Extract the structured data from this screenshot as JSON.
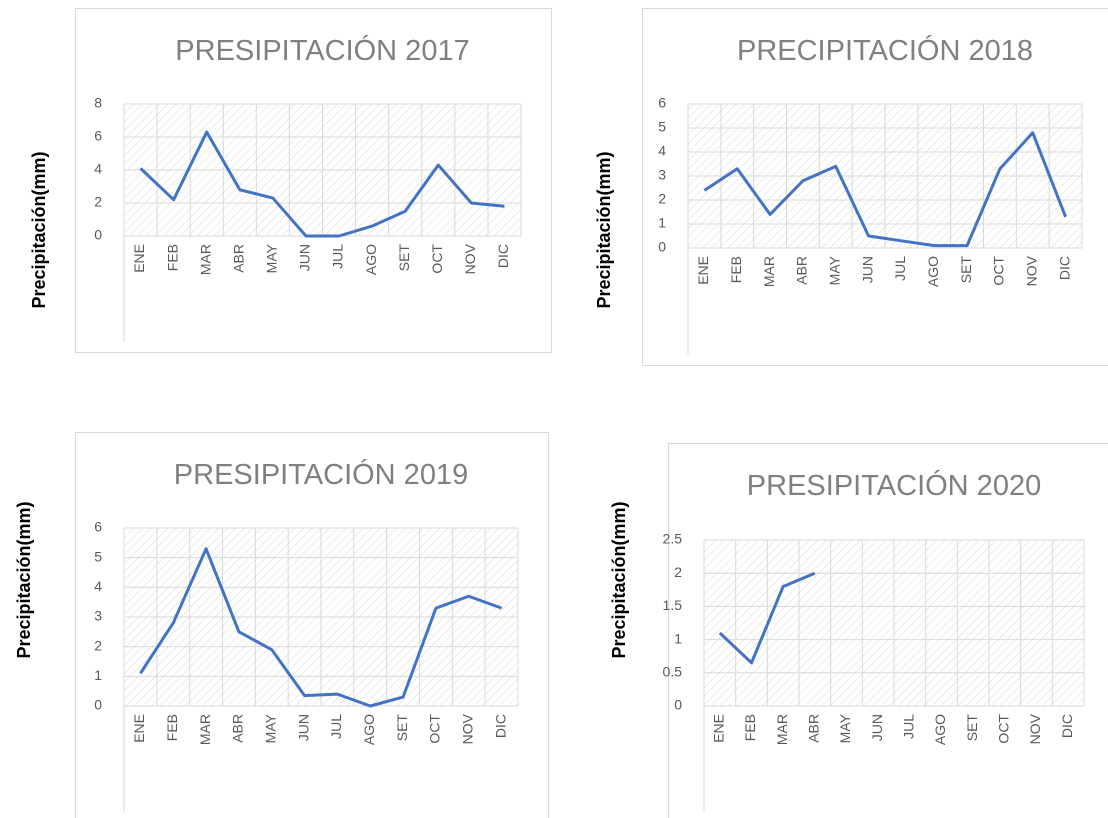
{
  "chart_data": [
    {
      "type": "line",
      "title": "PRESIPITACIÓN 2017",
      "y_label": "Precipitación(mm)",
      "categories": [
        "ENE",
        "FEB",
        "MAR",
        "ABR",
        "MAY",
        "JUN",
        "JUL",
        "AGO",
        "SET",
        "OCT",
        "NOV",
        "DIC"
      ],
      "values": [
        4.1,
        2.2,
        6.3,
        2.8,
        2.3,
        0,
        0,
        0.6,
        1.5,
        4.3,
        2.0,
        1.8
      ],
      "color": "#4472c4",
      "ylim": [
        0,
        8
      ],
      "yticks": [
        0,
        2,
        4,
        6,
        8
      ],
      "grid": true
    },
    {
      "type": "line",
      "title": "PRECIPITACIÓN 2018",
      "y_label": "Precipitación(mm)",
      "categories": [
        "ENE",
        "FEB",
        "MAR",
        "ABR",
        "MAY",
        "JUN",
        "JUL",
        "AGO",
        "SET",
        "OCT",
        "NOV",
        "DIC"
      ],
      "values": [
        2.4,
        3.3,
        1.4,
        2.8,
        3.4,
        0.5,
        0.3,
        0.1,
        0.1,
        3.3,
        4.8,
        1.3
      ],
      "color": "#4472c4",
      "ylim": [
        0,
        6
      ],
      "yticks": [
        0,
        1,
        2,
        3,
        4,
        5,
        6
      ],
      "grid": true
    },
    {
      "type": "line",
      "title": "PRESIPITACIÓN 2019",
      "y_label": "Precipitación(mm)",
      "categories": [
        "ENE",
        "FEB",
        "MAR",
        "ABR",
        "MAY",
        "JUN",
        "JUL",
        "AGO",
        "SET",
        "OCT",
        "NOV",
        "DIC"
      ],
      "values": [
        1.1,
        2.8,
        5.3,
        2.5,
        1.9,
        0.35,
        0.4,
        0,
        0.3,
        3.3,
        3.7,
        3.3
      ],
      "color": "#4472c4",
      "ylim": [
        0,
        6
      ],
      "yticks": [
        0,
        1,
        2,
        3,
        4,
        5,
        6
      ],
      "grid": true
    },
    {
      "type": "line",
      "title": "PRESIPITACIÓN 2020",
      "y_label": "Precipitación(mm)",
      "categories": [
        "ENE",
        "FEB",
        "MAR",
        "ABR",
        "MAY",
        "JUN",
        "JUL",
        "AGO",
        "SET",
        "OCT",
        "NOV",
        "DIC"
      ],
      "values": [
        1.1,
        0.65,
        1.8,
        2.0,
        null,
        null,
        null,
        null,
        null,
        null,
        null,
        null
      ],
      "color": "#4472c4",
      "ylim": [
        0,
        2.5
      ],
      "yticks": [
        0,
        0.5,
        1,
        1.5,
        2,
        2.5
      ],
      "grid": true
    }
  ]
}
